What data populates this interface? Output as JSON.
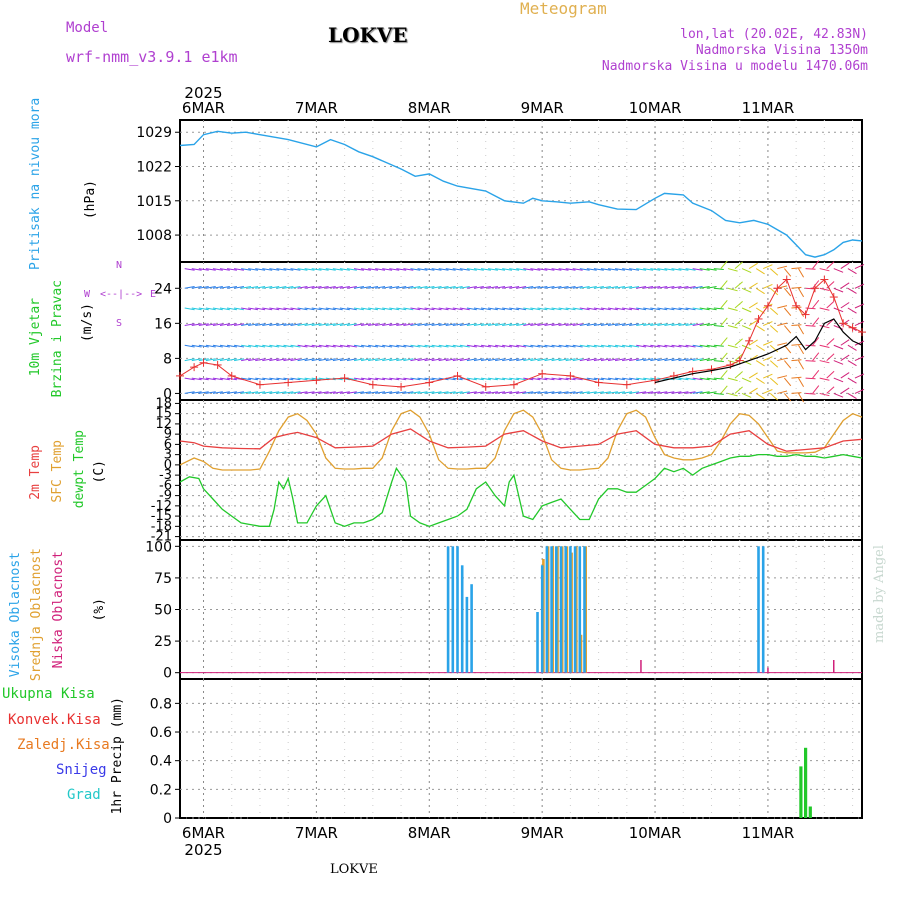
{
  "header": {
    "model_label": "Model",
    "model_name": "wrf-nmm_v3.9.1 e1km",
    "station": "LOKVE",
    "title": "Meteogram",
    "lonlat": "lon,lat (20.02E, 42.83N)",
    "altitude": "Nadmorska Visina 1350m",
    "model_altitude": "Nadmorska Visina u modelu 1470.06m",
    "footer_station": "LOKVE",
    "credit": "made by Angel"
  },
  "time_axis": {
    "year": "2025",
    "dates": [
      "6MAR",
      "7MAR",
      "8MAR",
      "9MAR",
      "10MAR",
      "11MAR"
    ],
    "start_hours": -5,
    "end_hours": 140
  },
  "colors": {
    "pressure": "#2aa3e8",
    "wind_purple": "#9a2ee0",
    "wind_blue": "#2a7ee8",
    "wind_cyan": "#22c8e0",
    "wind_speed": "#e83030",
    "temp_2m": "#e84040",
    "temp_sfc": "#e0a030",
    "dewpt": "#22c82a",
    "cloud_high": "#2aa3e8",
    "cloud_mid": "#e0a030",
    "cloud_low": "#d0207a",
    "precip_total": "#22c82a"
  },
  "panels": {
    "pressure": {
      "labels": [
        "Pritisak na nivou mora",
        "(hPa)"
      ],
      "ticks": [
        "1029",
        "1022",
        "1015",
        "1008"
      ]
    },
    "wind": {
      "labels": [
        "10m Vjetar",
        "Brzina i Pravac",
        "(m/s)"
      ],
      "compass": [
        "W",
        "<--|-->",
        "E"
      ],
      "compass_ns": [
        "N",
        "S"
      ],
      "ticks": [
        "24",
        "16",
        "8",
        "0"
      ]
    },
    "temperature": {
      "labels": [
        "2m Temp",
        "SFC Temp",
        "dewpt Temp",
        "(C)"
      ],
      "ticks": [
        "18",
        "15",
        "12",
        "9",
        "6",
        "3",
        "0",
        "-3",
        "-6",
        "-9",
        "-12",
        "-15",
        "-18",
        "-21"
      ]
    },
    "clouds": {
      "labels": [
        "Visoka Oblacnost",
        "Srednja Oblacnost",
        "Niska Oblacnost",
        "(%)"
      ],
      "ticks": [
        "100",
        "75",
        "50",
        "25",
        "0"
      ]
    },
    "precip": {
      "legend": [
        "Ukupna Kisa",
        "Konvek.Kisa",
        "Zaledj.Kisa",
        "Snijeg",
        "Grad"
      ],
      "legend_colors": [
        "#22c82a",
        "#e83030",
        "#e87a20",
        "#3a3ae8",
        "#22c8c8"
      ],
      "unit": "1hr Precip (mm)",
      "ticks": [
        "0.8",
        "0.6",
        "0.4",
        "0.2",
        "0"
      ]
    }
  },
  "chart_data": [
    {
      "type": "line",
      "title": "Pritisak na nivou mora",
      "ylabel": "(hPa)",
      "x_unit": "hours from 6MAR 00",
      "ylim": [
        1002.5,
        1031.5
      ],
      "series": [
        {
          "x": [
            -5,
            -2,
            0,
            3,
            6,
            9,
            12,
            18,
            24,
            27,
            30,
            33,
            36,
            42,
            45,
            48,
            51,
            54,
            60,
            64,
            68,
            70,
            72,
            75,
            78,
            82,
            84,
            88,
            92,
            96,
            98,
            102,
            104,
            108,
            111,
            114,
            117,
            120,
            124,
            126,
            128,
            130,
            132,
            134,
            136,
            138,
            140
          ],
          "values": [
            1026.3,
            1026.5,
            1028.5,
            1029.2,
            1028.8,
            1029.0,
            1028.5,
            1027.5,
            1026.0,
            1027.5,
            1026.5,
            1025.0,
            1024.0,
            1021.5,
            1020.0,
            1020.5,
            1019.0,
            1018.0,
            1017.0,
            1015.0,
            1014.5,
            1015.5,
            1015.0,
            1014.8,
            1014.5,
            1014.8,
            1014.2,
            1013.3,
            1013.2,
            1015.5,
            1016.5,
            1016.2,
            1014.5,
            1013.0,
            1011.0,
            1010.5,
            1011.0,
            1010.2,
            1008.0,
            1006.0,
            1004.0,
            1003.5,
            1004.0,
            1005.0,
            1006.5,
            1007.0,
            1006.8
          ]
        }
      ]
    },
    {
      "type": "line",
      "title": "10m Vjetar Brzina i Pravac",
      "ylabel": "(m/s)",
      "x_unit": "hours from 6MAR 00",
      "ylim": [
        -1.5,
        30
      ],
      "series": [
        {
          "x": [
            -5,
            -2,
            0,
            3,
            6,
            12,
            18,
            24,
            30,
            36,
            42,
            48,
            54,
            60,
            66,
            72,
            78,
            84,
            90,
            96,
            100,
            104,
            108,
            112,
            114,
            116,
            118,
            120,
            122,
            124,
            126,
            128,
            130,
            132,
            134,
            136,
            138,
            140
          ],
          "values": [
            4,
            6,
            7,
            6.5,
            4,
            2,
            2.5,
            3,
            3.5,
            2,
            1.5,
            2.5,
            4,
            1.5,
            2,
            4.5,
            4,
            2.5,
            2,
            3,
            4,
            5,
            5.5,
            6.5,
            7.5,
            12,
            17,
            20,
            24,
            26,
            20,
            18,
            24,
            26,
            22,
            16,
            15,
            14
          ]
        },
        {
          "x": [
            96,
            100,
            104,
            108,
            112,
            116,
            120,
            124,
            126,
            128,
            130,
            132,
            134,
            136,
            138,
            140
          ],
          "values": [
            2.5,
            3.5,
            4.5,
            5.2,
            6,
            7.5,
            9,
            11,
            13,
            10,
            12,
            16,
            17,
            14,
            12,
            11
          ]
        }
      ]
    },
    {
      "type": "line",
      "title": "2m Temp / SFC Temp / dewpt Temp",
      "ylabel": "(C)",
      "x_unit": "hours from 6MAR 00",
      "ylim": [
        -22,
        19
      ],
      "series": [
        {
          "x": [
            -5,
            -2,
            0,
            4,
            8,
            12,
            15,
            18,
            20,
            24,
            28,
            32,
            36,
            40,
            44,
            48,
            52,
            56,
            60,
            64,
            68,
            72,
            76,
            80,
            84,
            88,
            92,
            96,
            100,
            104,
            108,
            112,
            116,
            120,
            124,
            128,
            132,
            136,
            140
          ],
          "values": [
            7,
            6.5,
            5.5,
            5,
            4.8,
            4.7,
            8,
            9,
            9.5,
            8,
            5,
            5.2,
            5.5,
            9,
            10.5,
            7,
            5,
            5.2,
            5.5,
            9,
            10,
            7,
            5,
            5.5,
            6,
            9,
            10,
            6,
            5,
            5,
            5.5,
            9,
            10,
            6,
            4,
            4.5,
            5,
            7,
            7.5
          ]
        },
        {
          "x": [
            -5,
            -2,
            0,
            2,
            4,
            6,
            8,
            10,
            12,
            14,
            16,
            18,
            20,
            22,
            24,
            26,
            28,
            30,
            32,
            34,
            36,
            38,
            40,
            42,
            44,
            46,
            48,
            50,
            52,
            54,
            56,
            58,
            60,
            62,
            64,
            66,
            68,
            70,
            72,
            74,
            76,
            78,
            80,
            82,
            84,
            86,
            88,
            90,
            92,
            94,
            96,
            98,
            100,
            102,
            104,
            106,
            108,
            110,
            112,
            114,
            116,
            118,
            120,
            122,
            124,
            126,
            128,
            130,
            132,
            134,
            136,
            138,
            140
          ],
          "values": [
            0,
            2,
            1,
            -1,
            -1.5,
            -1.5,
            -1.5,
            -1.5,
            -1.2,
            4,
            10,
            14,
            15,
            13,
            9,
            2,
            -1,
            -1.2,
            -1.2,
            -1,
            -1,
            2,
            10,
            15,
            16,
            14,
            9,
            1.5,
            -1,
            -1.2,
            -1.2,
            -1,
            -1,
            2,
            10,
            15,
            16,
            14,
            9,
            1.5,
            -1,
            -1.5,
            -1.5,
            -1.2,
            -1,
            2,
            10,
            15,
            16,
            14,
            8,
            3,
            2,
            1.5,
            1.5,
            2,
            3,
            7,
            12,
            15,
            14.5,
            12,
            8,
            4,
            3.5,
            3.5,
            3.5,
            3.7,
            5,
            9,
            13,
            15,
            14
          ]
        },
        {
          "x": [
            -5,
            -3,
            -1,
            0,
            2,
            4,
            6,
            8,
            10,
            12,
            14,
            15,
            16,
            17,
            18,
            19,
            20,
            22,
            24,
            26,
            28,
            30,
            32,
            34,
            36,
            38,
            40,
            41,
            42,
            43,
            44,
            46,
            48,
            50,
            52,
            54,
            56,
            58,
            60,
            62,
            64,
            65,
            66,
            68,
            70,
            72,
            74,
            76,
            78,
            80,
            82,
            84,
            86,
            88,
            90,
            92,
            94,
            96,
            98,
            100,
            102,
            104,
            106,
            108,
            110,
            112,
            114,
            116,
            118,
            120,
            122,
            124,
            126,
            128,
            130,
            132,
            134,
            136,
            138,
            140
          ],
          "values": [
            -5,
            -3.5,
            -4,
            -7,
            -10,
            -13,
            -15,
            -17,
            -17.5,
            -18,
            -18,
            -13,
            -5,
            -7,
            -4,
            -10,
            -17,
            -17,
            -12,
            -9,
            -17,
            -18,
            -17,
            -17,
            -16,
            -14,
            -5,
            -1,
            -3,
            -5,
            -15,
            -17,
            -18,
            -17,
            -16,
            -15,
            -13,
            -7,
            -5,
            -9,
            -12,
            -5,
            -3,
            -15,
            -16,
            -12,
            -11,
            -10,
            -13,
            -16,
            -16,
            -10,
            -7,
            -7,
            -8,
            -8,
            -6,
            -4,
            -1,
            -2,
            -1,
            -3,
            -1,
            0,
            1,
            2,
            2.5,
            2.5,
            3,
            3,
            2.5,
            2.5,
            3,
            2.5,
            2.5,
            2,
            2.5,
            3,
            2.5,
            2
          ]
        }
      ]
    },
    {
      "type": "bar",
      "title": "Visoka / Srednja / Niska Oblacnost",
      "ylabel": "(%)",
      "x_unit": "hours from 6MAR 00",
      "ylim": [
        -5,
        105
      ],
      "series": [
        {
          "x": [
            52,
            53,
            54,
            55,
            56,
            57,
            58,
            71,
            72,
            73,
            74,
            75,
            76,
            77,
            78,
            79,
            80,
            81,
            82,
            118,
            119
          ],
          "values": [
            100,
            100,
            100,
            85,
            60,
            70,
            0,
            48,
            85,
            100,
            100,
            100,
            100,
            100,
            100,
            100,
            100,
            100,
            0,
            100,
            100
          ]
        },
        {
          "x": [
            72,
            73,
            74,
            75,
            76,
            77,
            78,
            79,
            80,
            81
          ],
          "values": [
            90,
            100,
            100,
            100,
            100,
            100,
            95,
            100,
            30,
            100
          ]
        },
        {
          "x": [
            93,
            120,
            134
          ],
          "values": [
            10,
            4,
            10
          ]
        }
      ]
    },
    {
      "type": "bar",
      "title": "1hr Precip",
      "ylabel": "(mm)",
      "x_unit": "hours from 6MAR 00",
      "ylim": [
        0,
        0.97
      ],
      "series": [
        {
          "x": [
            127,
            128,
            129
          ],
          "values": [
            0.36,
            0.49,
            0.08
          ]
        }
      ]
    }
  ]
}
